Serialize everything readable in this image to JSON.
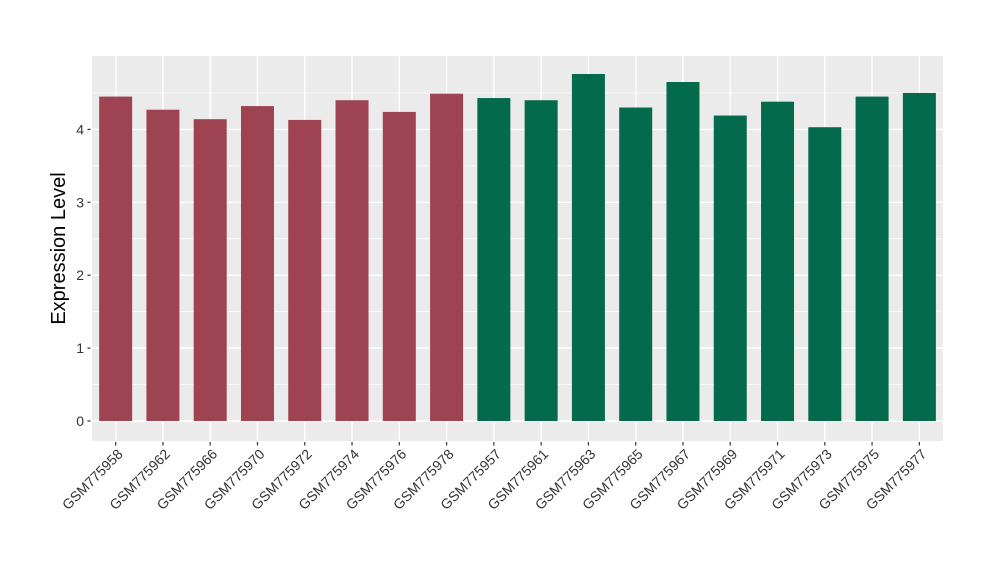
{
  "figure": {
    "background_color": "#FFFFFF",
    "panel_background_color": "#EBEBEB",
    "gridline_color": "#FFFFFF",
    "axis_text_color": "#333333",
    "axis_title_color": "#000000",
    "tick_mark_color": "#333333"
  },
  "chart_data": {
    "type": "bar",
    "title": "",
    "xlabel": "",
    "ylabel": "Expression Level",
    "categories": [
      "GSM775958",
      "GSM775962",
      "GSM775966",
      "GSM775970",
      "GSM775972",
      "GSM775974",
      "GSM775976",
      "GSM775978",
      "GSM775957",
      "GSM775961",
      "GSM775963",
      "GSM775965",
      "GSM775967",
      "GSM775969",
      "GSM775971",
      "GSM775973",
      "GSM775975",
      "GSM775977"
    ],
    "values": [
      4.45,
      4.27,
      4.14,
      4.32,
      4.13,
      4.4,
      4.24,
      4.49,
      4.43,
      4.4,
      4.76,
      4.3,
      4.65,
      4.19,
      4.38,
      4.03,
      4.45,
      4.5
    ],
    "groups": [
      {
        "name": "group-1",
        "color": "#9E4352",
        "from": 0,
        "to": 7
      },
      {
        "name": "group-2",
        "color": "#046A4C",
        "from": 8,
        "to": 17
      }
    ],
    "yticks": [
      0,
      1,
      2,
      3,
      4
    ],
    "minor_yticks": [
      0.5,
      1.5,
      2.5,
      3.5,
      4.5
    ],
    "ylim": [
      -0.27,
      5.01
    ],
    "grid": "major+minor, white on gray panel",
    "legend_position": "none",
    "x_label_rotation_deg": 45
  }
}
